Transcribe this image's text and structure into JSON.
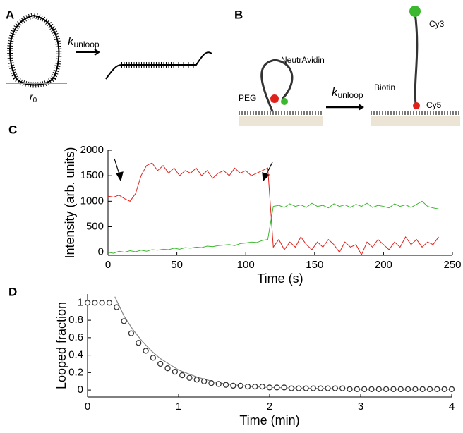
{
  "diagram_a": {
    "panel_label": "A",
    "rate": "k",
    "rate_sub": "unloop",
    "radius": "r",
    "radius_sub": "0"
  },
  "diagram_b": {
    "panel_label": "B",
    "rate": "k",
    "rate_sub": "unloop",
    "labels": [
      "Cy3",
      "NeutrAvidin",
      "PEG",
      "Biotin",
      "Cy5"
    ]
  },
  "chart_data": [
    {
      "type": "line",
      "panel_label": "C",
      "xlabel": "Time (s)",
      "ylabel": "Intensity (arb. units)",
      "xlim": [
        0,
        250
      ],
      "xticks": [
        0,
        50,
        100,
        150,
        200,
        250
      ],
      "ylim": [
        -60,
        2000
      ],
      "yticks": [
        0,
        500,
        1000,
        1500,
        2000
      ],
      "x": [
        0,
        4,
        8,
        12,
        16,
        20,
        24,
        28,
        32,
        36,
        40,
        44,
        48,
        52,
        56,
        60,
        64,
        68,
        72,
        76,
        80,
        84,
        88,
        92,
        96,
        100,
        104,
        108,
        112,
        116,
        120,
        124,
        128,
        132,
        136,
        140,
        144,
        148,
        152,
        156,
        160,
        164,
        168,
        172,
        176,
        180,
        184,
        188,
        192,
        196,
        200,
        204,
        208,
        212,
        216,
        220,
        224,
        228,
        232,
        236,
        240
      ],
      "series": [
        {
          "color": "#e0201b",
          "values": [
            1100,
            1080,
            1120,
            1050,
            1000,
            1150,
            1500,
            1700,
            1750,
            1600,
            1700,
            1550,
            1650,
            1500,
            1600,
            1550,
            1650,
            1500,
            1600,
            1450,
            1550,
            1600,
            1500,
            1650,
            1550,
            1600,
            1500,
            1550,
            1600,
            1650,
            100,
            250,
            50,
            200,
            100,
            300,
            150,
            50,
            200,
            100,
            250,
            150,
            0,
            200,
            100,
            150,
            -50,
            200,
            100,
            250,
            150,
            50,
            200,
            100,
            300,
            150,
            250,
            100,
            200,
            150,
            300
          ]
        },
        {
          "color": "#3cb82e",
          "values": [
            0,
            -20,
            20,
            0,
            30,
            10,
            40,
            20,
            50,
            40,
            60,
            50,
            80,
            60,
            90,
            80,
            100,
            90,
            120,
            110,
            130,
            140,
            150,
            130,
            170,
            180,
            200,
            190,
            230,
            250,
            900,
            920,
            880,
            950,
            900,
            930,
            880,
            960,
            900,
            920,
            870,
            950,
            900,
            930,
            880,
            940,
            900,
            960,
            880,
            920,
            900,
            870,
            950,
            900,
            930,
            880,
            940,
            1000,
            900,
            870,
            850
          ]
        }
      ]
    },
    {
      "type": "scatter",
      "panel_label": "D",
      "xlabel": "Time (min)",
      "ylabel": "Looped fraction",
      "xlim": [
        0,
        4
      ],
      "xticks": [
        0,
        1,
        2,
        3,
        4
      ],
      "ylim": [
        -0.08,
        1.1
      ],
      "yticks": [
        0,
        0.2,
        0.4,
        0.6,
        0.8,
        1
      ],
      "series": [
        {
          "mode": "markers",
          "color": "#333333",
          "x": [
            0,
            0.08,
            0.16,
            0.24,
            0.32,
            0.4,
            0.48,
            0.56,
            0.64,
            0.72,
            0.8,
            0.88,
            0.96,
            1.04,
            1.12,
            1.2,
            1.28,
            1.36,
            1.44,
            1.52,
            1.6,
            1.68,
            1.76,
            1.84,
            1.92,
            2,
            2.08,
            2.16,
            2.24,
            2.32,
            2.4,
            2.48,
            2.56,
            2.64,
            2.72,
            2.8,
            2.88,
            2.96,
            3.04,
            3.12,
            3.2,
            3.28,
            3.36,
            3.44,
            3.52,
            3.6,
            3.68,
            3.76,
            3.84,
            3.92,
            4
          ],
          "values": [
            1,
            1,
            1,
            1,
            0.95,
            0.79,
            0.65,
            0.54,
            0.45,
            0.37,
            0.3,
            0.25,
            0.21,
            0.17,
            0.14,
            0.12,
            0.1,
            0.08,
            0.07,
            0.06,
            0.05,
            0.05,
            0.04,
            0.04,
            0.04,
            0.03,
            0.03,
            0.03,
            0.02,
            0.02,
            0.02,
            0.02,
            0.02,
            0.02,
            0.02,
            0.02,
            0.01,
            0.01,
            0.01,
            0.01,
            0.01,
            0.01,
            0.01,
            0.01,
            0.01,
            0.01,
            0.01,
            0.01,
            0.01,
            0.01,
            0.01
          ]
        },
        {
          "mode": "line",
          "color": "#888888",
          "x": [
            0.3,
            0.4,
            0.5,
            0.6,
            0.7,
            0.8,
            1,
            1.2,
            1.4,
            1.6,
            1.8,
            2,
            2.5,
            3,
            3.5,
            4
          ],
          "values": [
            1.07,
            0.85,
            0.69,
            0.56,
            0.45,
            0.36,
            0.23,
            0.15,
            0.09,
            0.06,
            0.04,
            0.03,
            0.02,
            0.01,
            0.01,
            0.01
          ]
        }
      ]
    }
  ]
}
